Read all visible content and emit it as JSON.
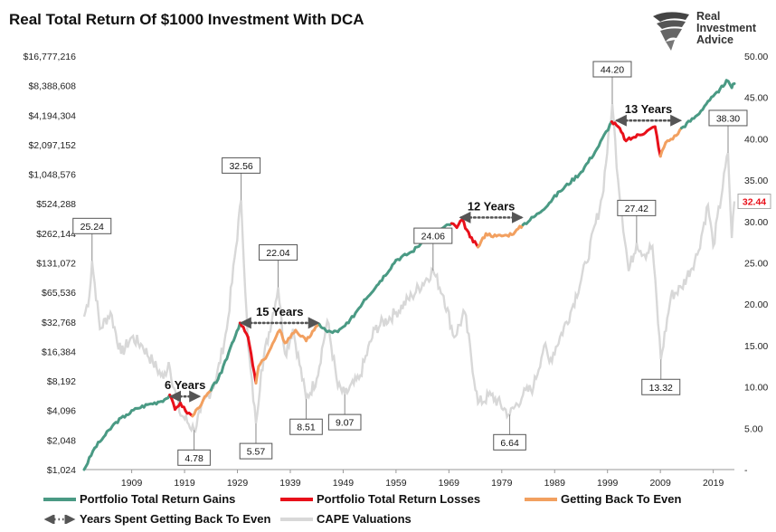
{
  "header": {
    "title": "Real Total Return Of $1000 Investment With DCA",
    "logo_line1": "Real",
    "logo_line2": "Investment",
    "logo_line3": "Advice"
  },
  "colors": {
    "gains": "#4a9a84",
    "losses": "#e8101a",
    "recovery": "#f2a060",
    "cape": "#d8d8d8",
    "arrow": "#555555",
    "last_value": "#e8101a"
  },
  "legend": {
    "gains": "Portfolio Total Return Gains",
    "losses": "Portfolio Total Return Losses",
    "recovery": "Getting Back To Even",
    "arrows": "Years Spent Getting Back To Even",
    "cape": "CAPE Valuations"
  },
  "chart_data": {
    "type": "line",
    "title": "Real Total Return Of $1000 Investment With DCA",
    "x_range": [
      1900,
      2023
    ],
    "x_ticks": [
      "1909",
      "1919",
      "1929",
      "1939",
      "1949",
      "1959",
      "1969",
      "1979",
      "1989",
      "1999",
      "2009",
      "2019"
    ],
    "y_left": {
      "scale": "log2",
      "ticks": [
        "$1,024",
        "$2,048",
        "$4,096",
        "$8,192",
        "$16,384",
        "$32,768",
        "$65,536",
        "$131,072",
        "$262,144",
        "$524,288",
        "$1,048,576",
        "$2,097,152",
        "$4,194,304",
        "$8,388,608",
        "$16,777,216"
      ],
      "range": [
        1024,
        16777216
      ]
    },
    "y_right": {
      "ticks": [
        "-",
        "5.00",
        "10.00",
        "15.00",
        "20.00",
        "25.00",
        "30.00",
        "35.00",
        "40.00",
        "45.00",
        "50.00"
      ],
      "range": [
        0,
        50
      ]
    },
    "series": [
      {
        "name": "Portfolio Total Return",
        "axis": "left",
        "points": [
          [
            1900,
            1024
          ],
          [
            1902,
            1700
          ],
          [
            1904,
            2300
          ],
          [
            1906,
            3100
          ],
          [
            1908,
            3700
          ],
          [
            1910,
            4300
          ],
          [
            1912,
            4700
          ],
          [
            1914,
            5000
          ],
          [
            1915.5,
            5400
          ],
          [
            1916.2,
            5900
          ],
          [
            1917.2,
            4200
          ],
          [
            1918.2,
            4900
          ],
          [
            1919.2,
            4050
          ],
          [
            1920.5,
            3600
          ],
          [
            1921.5,
            4300
          ],
          [
            1922.5,
            5200
          ],
          [
            1924,
            6600
          ],
          [
            1926,
            10000
          ],
          [
            1928,
            20000
          ],
          [
            1929.5,
            32000
          ],
          [
            1931,
            23000
          ],
          [
            1932.5,
            7800
          ],
          [
            1933,
            11500
          ],
          [
            1934,
            13500
          ],
          [
            1935,
            16500
          ],
          [
            1937,
            27000
          ],
          [
            1938,
            20000
          ],
          [
            1940,
            27000
          ],
          [
            1942,
            21000
          ],
          [
            1943.5,
            27000
          ],
          [
            1944.5,
            31000
          ],
          [
            1946,
            26000
          ],
          [
            1948,
            26000
          ],
          [
            1950,
            32000
          ],
          [
            1953,
            55000
          ],
          [
            1956,
            85000
          ],
          [
            1959,
            140000
          ],
          [
            1962,
            170000
          ],
          [
            1965,
            240000
          ],
          [
            1968,
            300000
          ],
          [
            1969.5,
            330000
          ],
          [
            1970.5,
            300000
          ],
          [
            1971.5,
            360000
          ],
          [
            1973,
            240000
          ],
          [
            1974.5,
            190000
          ],
          [
            1976,
            260000
          ],
          [
            1978,
            245000
          ],
          [
            1980,
            250000
          ],
          [
            1981.5,
            270000
          ],
          [
            1983,
            320000
          ],
          [
            1986,
            420000
          ],
          [
            1990,
            700000
          ],
          [
            1994,
            1100000
          ],
          [
            1997,
            1900000
          ],
          [
            1999.8,
            3600000
          ],
          [
            2001,
            3200000
          ],
          [
            2002.5,
            2300000
          ],
          [
            2004,
            2500000
          ],
          [
            2006.5,
            2900000
          ],
          [
            2008,
            3200000
          ],
          [
            2009,
            1600000
          ],
          [
            2010,
            2200000
          ],
          [
            2012,
            2600000
          ],
          [
            2013,
            3100000
          ],
          [
            2016,
            4200000
          ],
          [
            2018,
            5800000
          ],
          [
            2020,
            7200000
          ],
          [
            2021.5,
            9500000
          ],
          [
            2022.5,
            8000000
          ],
          [
            2023,
            8800000
          ]
        ],
        "loss_periods": [
          [
            1916.2,
            1920.5
          ],
          [
            1929.5,
            1932.5
          ],
          [
            1969.5,
            1974.5
          ],
          [
            1999.8,
            2009
          ]
        ],
        "recovery_periods": [
          [
            1920.5,
            1924
          ],
          [
            1932.5,
            1944.5
          ],
          [
            1974.5,
            1983
          ],
          [
            2009,
            2013
          ]
        ]
      },
      {
        "name": "CAPE Valuations",
        "axis": "right",
        "points": [
          [
            1900,
            18.5
          ],
          [
            1901,
            21
          ],
          [
            1901.5,
            25.24
          ],
          [
            1903,
            17
          ],
          [
            1905,
            19
          ],
          [
            1907,
            14
          ],
          [
            1909,
            16
          ],
          [
            1911,
            15
          ],
          [
            1913,
            13
          ],
          [
            1915,
            11
          ],
          [
            1916,
            13
          ],
          [
            1918,
            7
          ],
          [
            1920.8,
            4.78
          ],
          [
            1922,
            7
          ],
          [
            1925,
            11
          ],
          [
            1927,
            17
          ],
          [
            1929.7,
            32.56
          ],
          [
            1931,
            15
          ],
          [
            1932.5,
            5.57
          ],
          [
            1933.5,
            12
          ],
          [
            1936.7,
            22.04
          ],
          [
            1938,
            14
          ],
          [
            1939.5,
            17
          ],
          [
            1942,
            8.51
          ],
          [
            1944,
            11
          ],
          [
            1946,
            18
          ],
          [
            1948,
            10
          ],
          [
            1949.3,
            9.07
          ],
          [
            1952,
            11
          ],
          [
            1955,
            17
          ],
          [
            1959,
            19
          ],
          [
            1962,
            21
          ],
          [
            1966,
            24.06
          ],
          [
            1968,
            21
          ],
          [
            1970,
            16
          ],
          [
            1972,
            19
          ],
          [
            1974.5,
            8
          ],
          [
            1977,
            9
          ],
          [
            1980.5,
            6.64
          ],
          [
            1983,
            9
          ],
          [
            1985,
            10
          ],
          [
            1987,
            15
          ],
          [
            1988,
            13
          ],
          [
            1992,
            19
          ],
          [
            1995,
            25
          ],
          [
            1998,
            33
          ],
          [
            1999.9,
            44.2
          ],
          [
            2001,
            35
          ],
          [
            2003,
            24
          ],
          [
            2004.5,
            27.42
          ],
          [
            2006,
            26
          ],
          [
            2007.5,
            27
          ],
          [
            2009.1,
            13.32
          ],
          [
            2011,
            21
          ],
          [
            2013,
            22
          ],
          [
            2016,
            26
          ],
          [
            2018,
            32
          ],
          [
            2019,
            27
          ],
          [
            2021.8,
            38.3
          ],
          [
            2022.5,
            28
          ],
          [
            2023,
            32.44
          ]
        ]
      }
    ],
    "cape_labels": [
      {
        "text": "25.24",
        "x": 1901.5,
        "y": 25.24,
        "pos": "above"
      },
      {
        "text": "4.78",
        "x": 1920.8,
        "y": 4.78,
        "pos": "below"
      },
      {
        "text": "32.56",
        "x": 1929.7,
        "y": 32.56,
        "pos": "above"
      },
      {
        "text": "5.57",
        "x": 1932.5,
        "y": 5.57,
        "pos": "below"
      },
      {
        "text": "22.04",
        "x": 1936.7,
        "y": 22.04,
        "pos": "above"
      },
      {
        "text": "8.51",
        "x": 1942,
        "y": 8.51,
        "pos": "below"
      },
      {
        "text": "9.07",
        "x": 1949.3,
        "y": 9.07,
        "pos": "below"
      },
      {
        "text": "24.06",
        "x": 1966,
        "y": 24.06,
        "pos": "above"
      },
      {
        "text": "6.64",
        "x": 1980.5,
        "y": 6.64,
        "pos": "below"
      },
      {
        "text": "44.20",
        "x": 1999.9,
        "y": 44.2,
        "pos": "above"
      },
      {
        "text": "27.42",
        "x": 2004.5,
        "y": 27.42,
        "pos": "above"
      },
      {
        "text": "13.32",
        "x": 2009.1,
        "y": 13.32,
        "pos": "below"
      },
      {
        "text": "38.30",
        "x": 2021.8,
        "y": 38.3,
        "pos": "above"
      }
    ],
    "last_value_label": "32.44",
    "period_annotations": [
      {
        "label": "6 Years",
        "start": 1916.2,
        "end": 1922,
        "y": 5700
      },
      {
        "label": "15 Years",
        "start": 1929.5,
        "end": 1944.5,
        "y": 32000
      },
      {
        "label": "12 Years",
        "start": 1971,
        "end": 1983,
        "y": 380000
      },
      {
        "label": "13 Years",
        "start": 2000.5,
        "end": 2013,
        "y": 3700000
      }
    ]
  }
}
